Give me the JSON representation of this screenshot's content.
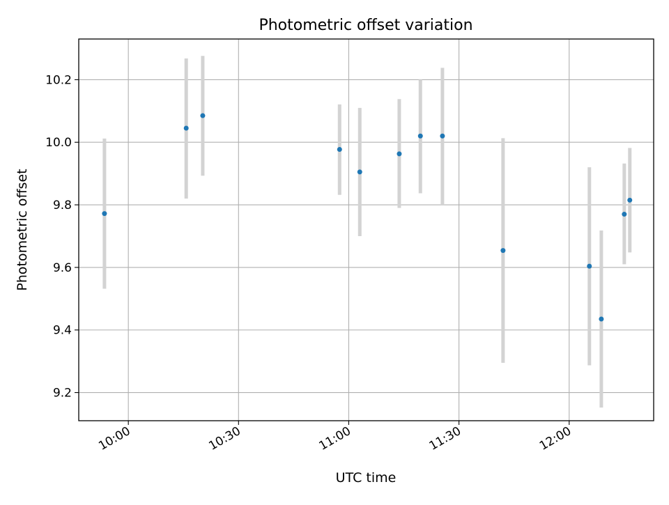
{
  "chart_data": {
    "type": "scatter",
    "title": "Photometric offset variation",
    "xlabel": "UTC time",
    "ylabel": "Photometric offset",
    "x_tick_labels": [
      "10:00",
      "10:30",
      "11:00",
      "11:30",
      "12:00"
    ],
    "x_ticks": [
      "10:00",
      "10:30",
      "11:00",
      "11:30",
      "12:00"
    ],
    "y_tick_labels": [
      "9.2",
      "9.4",
      "9.6",
      "9.8",
      "10.0",
      "10.2"
    ],
    "y_ticks": [
      9.2,
      9.4,
      9.6,
      9.8,
      10.0,
      10.2
    ],
    "xlim": [
      "09:46:30",
      "12:23:00"
    ],
    "ylim": [
      9.11,
      10.33
    ],
    "grid": true,
    "series": [
      {
        "points": [
          {
            "x": "09:53:30",
            "y": 9.772,
            "yerr": [
              9.532,
              10.012
            ]
          },
          {
            "x": "10:15:45",
            "y": 10.045,
            "yerr": [
              9.82,
              10.268
            ]
          },
          {
            "x": "10:20:15",
            "y": 10.085,
            "yerr": [
              9.893,
              10.276
            ]
          },
          {
            "x": "10:57:30",
            "y": 9.977,
            "yerr": [
              9.832,
              10.121
            ]
          },
          {
            "x": "11:03:00",
            "y": 9.905,
            "yerr": [
              9.7,
              10.11
            ]
          },
          {
            "x": "11:13:45",
            "y": 9.963,
            "yerr": [
              9.79,
              10.138
            ]
          },
          {
            "x": "11:19:30",
            "y": 10.02,
            "yerr": [
              9.837,
              10.2
            ]
          },
          {
            "x": "11:25:30",
            "y": 10.02,
            "yerr": [
              9.8,
              10.238
            ]
          },
          {
            "x": "11:42:00",
            "y": 9.654,
            "yerr": [
              9.295,
              10.013
            ]
          },
          {
            "x": "12:05:30",
            "y": 9.604,
            "yerr": [
              9.287,
              9.92
            ]
          },
          {
            "x": "12:08:45",
            "y": 9.435,
            "yerr": [
              9.152,
              9.718
            ]
          },
          {
            "x": "12:15:00",
            "y": 9.77,
            "yerr": [
              9.61,
              9.932
            ]
          },
          {
            "x": "12:16:30",
            "y": 9.815,
            "yerr": [
              9.648,
              9.982
            ]
          }
        ]
      }
    ],
    "colors": {
      "points": "#1f77b4",
      "error_bars": "#d3d3d3",
      "grid": "#b0b0b0"
    }
  }
}
